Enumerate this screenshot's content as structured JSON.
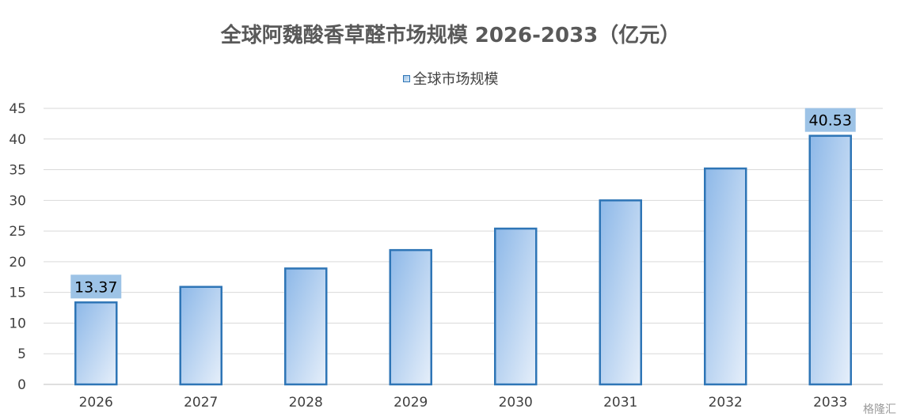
{
  "chart_data": {
    "type": "bar",
    "title": "全球阿魏酸香草醛市场规模 2026-2033（亿元）",
    "categories": [
      "2026",
      "2027",
      "2028",
      "2029",
      "2030",
      "2031",
      "2032",
      "2033"
    ],
    "series": [
      {
        "name": "全球市场规模",
        "values": [
          13.37,
          15.9,
          18.9,
          21.9,
          25.4,
          30.0,
          35.2,
          40.53
        ]
      }
    ],
    "data_labels": {
      "2026": "13.37",
      "2033": "40.53"
    },
    "ylim": [
      0,
      45
    ],
    "yticks": [
      0,
      5,
      10,
      15,
      20,
      25,
      30,
      35,
      40,
      45
    ],
    "grid": true,
    "legend_position": "top",
    "colors": {
      "bar_border": "#2e75b6",
      "bar_fill_top": "#8db8e8",
      "bar_fill_bottom": "#deebf7",
      "label_bg": "#9dc3e6",
      "grid": "#d9d9d9"
    }
  },
  "watermark": "格隆汇"
}
